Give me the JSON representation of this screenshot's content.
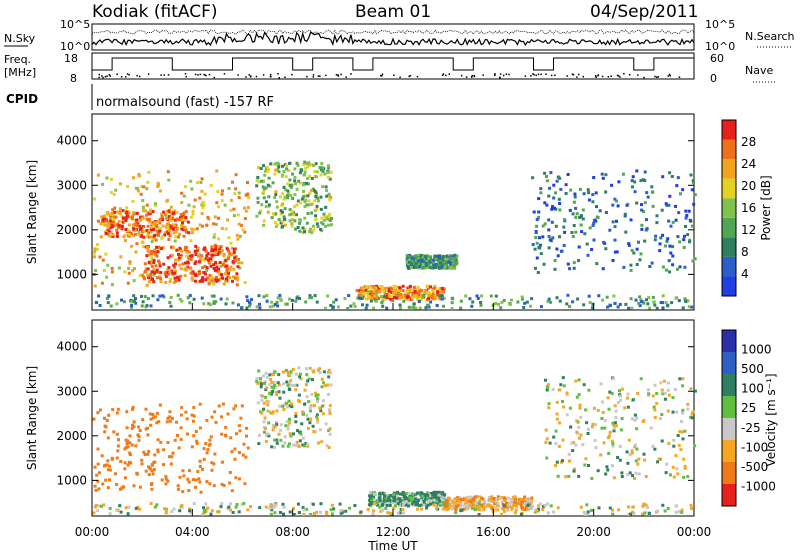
{
  "header": {
    "station": "Kodiak (fitACF)",
    "beam": "Beam 01",
    "date": "04/Sep/2011"
  },
  "noise_panel": {
    "left_label": "N.Sky",
    "right_label": "N.Search",
    "y_top_tick": "10^5",
    "y_bottom_tick": "10^0"
  },
  "freq_panel": {
    "left_label_line1": "Freq.",
    "left_label_line2": "[MHz]",
    "left_ticks": [
      "18",
      "8"
    ],
    "right_label": "Nave",
    "right_ticks": [
      "60",
      "0"
    ]
  },
  "cpid": {
    "label": "CPID",
    "text": "normalsound (fast) -157 RF"
  },
  "colors": {
    "power": [
      "#1f3fe0",
      "#2b5fc8",
      "#2f7f62",
      "#52a651",
      "#7fc24e",
      "#e3d21f",
      "#f3a320",
      "#ef6f1a",
      "#e8201a"
    ],
    "velocity": [
      "#2a2ea8",
      "#2f5fc4",
      "#2f7f62",
      "#5fbf3f",
      "#c8c8c8",
      "#f5a623",
      "#f07a18",
      "#e8201a"
    ]
  },
  "chart_data": [
    {
      "type": "heatmap",
      "name": "power",
      "xlabel": "",
      "ylabel": "Slant Range [km]",
      "ylim": [
        200,
        4600
      ],
      "y_ticks": [
        "4000",
        "3000",
        "2000",
        "1000"
      ],
      "colorbar_label": "Power [dB]",
      "colorbar_ticks": [
        "28",
        "24",
        "20",
        "16",
        "12",
        "8",
        "4"
      ],
      "regions": [
        {
          "t0": 0.0,
          "t1": 6.2,
          "r0": 700,
          "r1": 3300,
          "v": 20
        },
        {
          "t0": 0.3,
          "t1": 3.8,
          "r0": 1800,
          "r1": 2400,
          "v": 24
        },
        {
          "t0": 2.0,
          "t1": 5.8,
          "r0": 800,
          "r1": 1600,
          "v": 26
        },
        {
          "t0": 6.5,
          "t1": 9.5,
          "r0": 1900,
          "r1": 3500,
          "v": 14
        },
        {
          "t0": 10.5,
          "t1": 14.0,
          "r0": 400,
          "r1": 700,
          "v": 22
        },
        {
          "t0": 12.5,
          "t1": 14.5,
          "r0": 1100,
          "r1": 1400,
          "v": 10
        },
        {
          "t0": 17.5,
          "t1": 24.0,
          "r0": 1000,
          "r1": 3300,
          "v": 6
        },
        {
          "t0": 0.0,
          "t1": 24.0,
          "r0": 200,
          "r1": 500,
          "v": 10
        }
      ]
    },
    {
      "type": "heatmap",
      "name": "velocity",
      "xlabel": "Time UT",
      "ylabel": "Slant Range [km]",
      "ylim": [
        200,
        4600
      ],
      "y_ticks": [
        "4000",
        "3000",
        "2000",
        "1000"
      ],
      "x_ticks": [
        "00:00",
        "04:00",
        "08:00",
        "12:00",
        "16:00",
        "20:00",
        "00:00"
      ],
      "xlim": [
        0,
        24
      ],
      "colorbar_label": "Velocity [m s⁻¹]",
      "colorbar_ticks": [
        "1000",
        "500",
        "100",
        "25",
        "-25",
        "-100",
        "-500",
        "-1000"
      ],
      "regions": [
        {
          "t0": 0.0,
          "t1": 6.2,
          "r0": 700,
          "r1": 2700,
          "v": -300
        },
        {
          "t0": 6.5,
          "t1": 9.5,
          "r0": 1700,
          "r1": 3500,
          "v": 0
        },
        {
          "t0": 11.0,
          "t1": 14.0,
          "r0": 400,
          "r1": 700,
          "v": 80
        },
        {
          "t0": 14.0,
          "t1": 17.5,
          "r0": 300,
          "r1": 600,
          "v": -80
        },
        {
          "t0": 18.0,
          "t1": 24.0,
          "r0": 1000,
          "r1": 3300,
          "v": 0
        },
        {
          "t0": 0.0,
          "t1": 24.0,
          "r0": 200,
          "r1": 450,
          "v": 0
        }
      ]
    }
  ]
}
